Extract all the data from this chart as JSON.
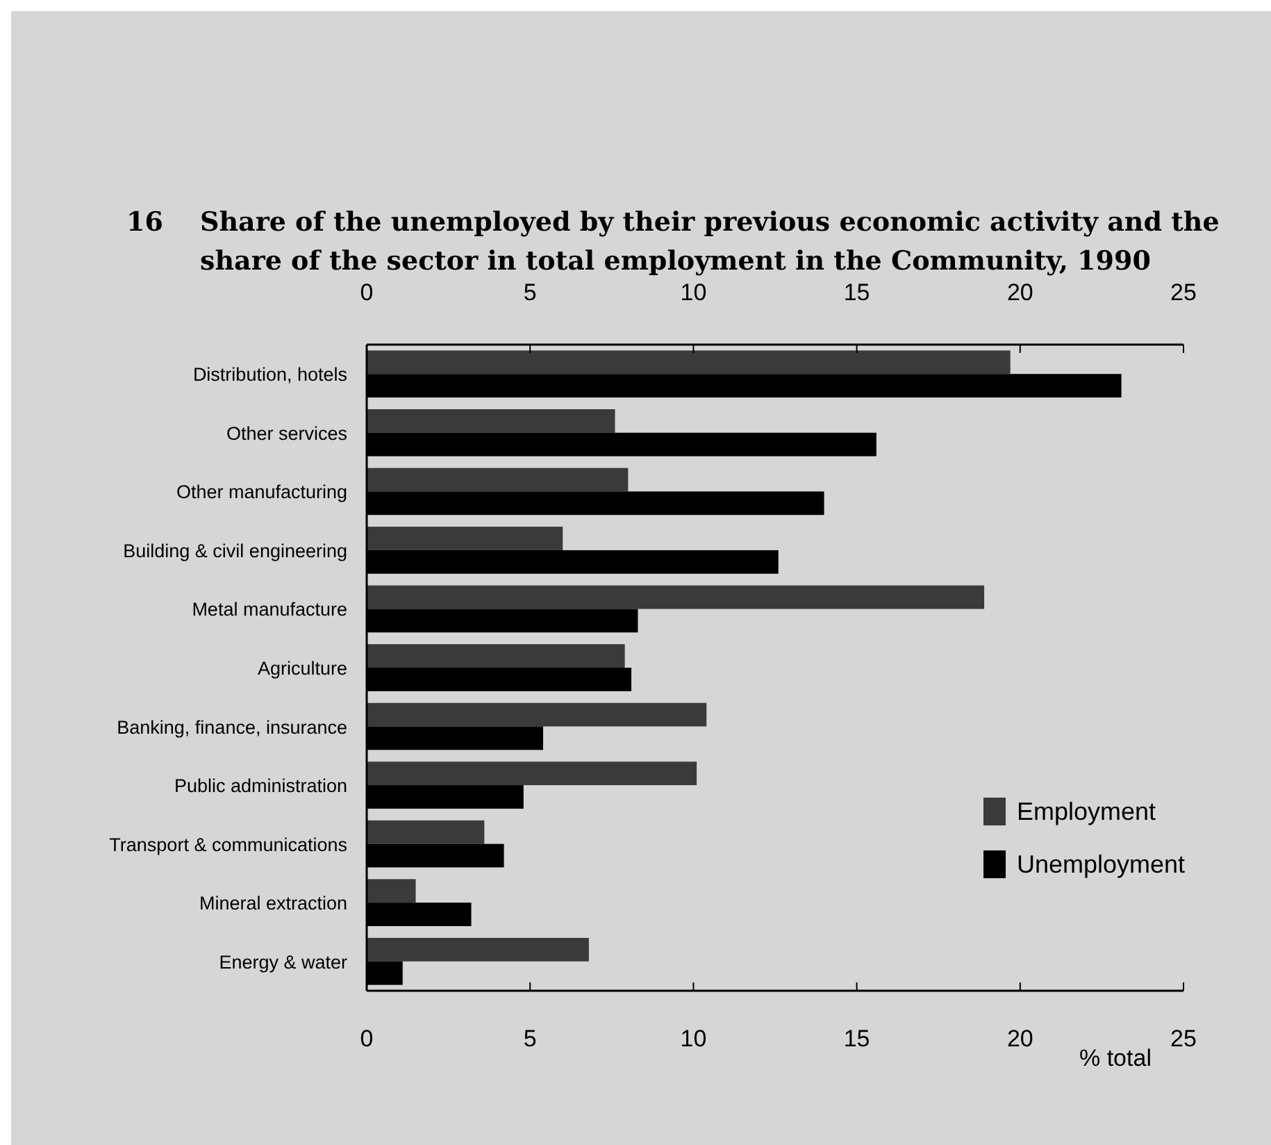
{
  "chart_data": {
    "type": "bar",
    "orientation": "horizontal",
    "title": "Share of the unemployed by their previous economic activity and the share of the sector in total employment  in the Community, 1990",
    "annotations": [
      "16"
    ],
    "xlabel": "% total",
    "categories": [
      "Distribution, hotels",
      "Other services",
      "Other manufacturing",
      "Building & civil engineering",
      "Metal manufacture",
      "Agriculture",
      "Banking, finance, insurance",
      "Public administration",
      "Transport & communications",
      "Mineral extraction",
      "Energy & water"
    ],
    "series": [
      {
        "name": "Employment",
        "color": "#3a3a3a",
        "values": [
          19.7,
          7.6,
          8.0,
          6.0,
          18.9,
          7.9,
          10.4,
          10.1,
          3.6,
          1.5,
          6.8
        ]
      },
      {
        "name": "Unemployment",
        "color": "#000000",
        "values": [
          23.1,
          15.6,
          14.0,
          12.6,
          8.3,
          8.1,
          5.4,
          4.8,
          4.2,
          3.2,
          1.1
        ]
      }
    ],
    "xlim": [
      0,
      25
    ],
    "xticks": [
      0,
      5,
      10,
      15,
      20,
      25
    ],
    "x2lim": [
      0,
      25
    ],
    "x2ticks": [
      0,
      5,
      10,
      15,
      20,
      25
    ],
    "legend": "bottom right"
  }
}
